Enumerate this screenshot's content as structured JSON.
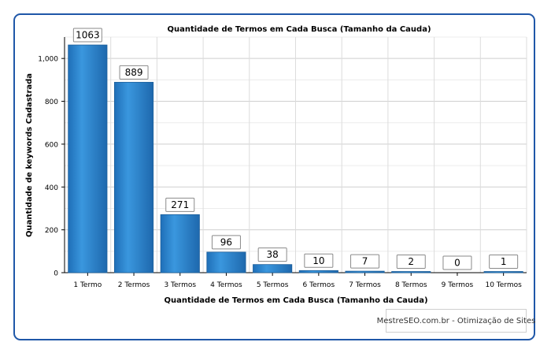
{
  "chart_data": {
    "type": "bar",
    "title": "Quantidade de Termos em Cada Busca (Tamanho da Cauda)",
    "xlabel": "Quantidade de Termos em Cada Busca (Tamanho da Cauda)",
    "ylabel": "Quantidade de keywords Cadastrada",
    "categories": [
      "1 Termo",
      "2 Termos",
      "3 Termos",
      "4 Termos",
      "5 Termos",
      "6 Termos",
      "7 Termos",
      "8 Termos",
      "9 Termos",
      "10 Termos"
    ],
    "values": [
      1063,
      889,
      271,
      96,
      38,
      10,
      7,
      2,
      0,
      1
    ],
    "value_labels": [
      "1063",
      "889",
      "271",
      "96",
      "38",
      "10",
      "7",
      "2",
      "0",
      "1"
    ],
    "ylim": [
      0,
      1100
    ],
    "yticks": [
      0,
      200,
      400,
      600,
      800,
      1000
    ],
    "ytick_labels": [
      "0",
      "200",
      "400",
      "600",
      "800",
      "1,000"
    ],
    "grid": true,
    "colors": {
      "bar": "#2f86cf",
      "bar_edge": "#1d5f9a",
      "grid": "#dcdcdc",
      "frame": "#1f57a8"
    }
  },
  "credit": "MestreSEO.com.br - Otimização de Sites"
}
